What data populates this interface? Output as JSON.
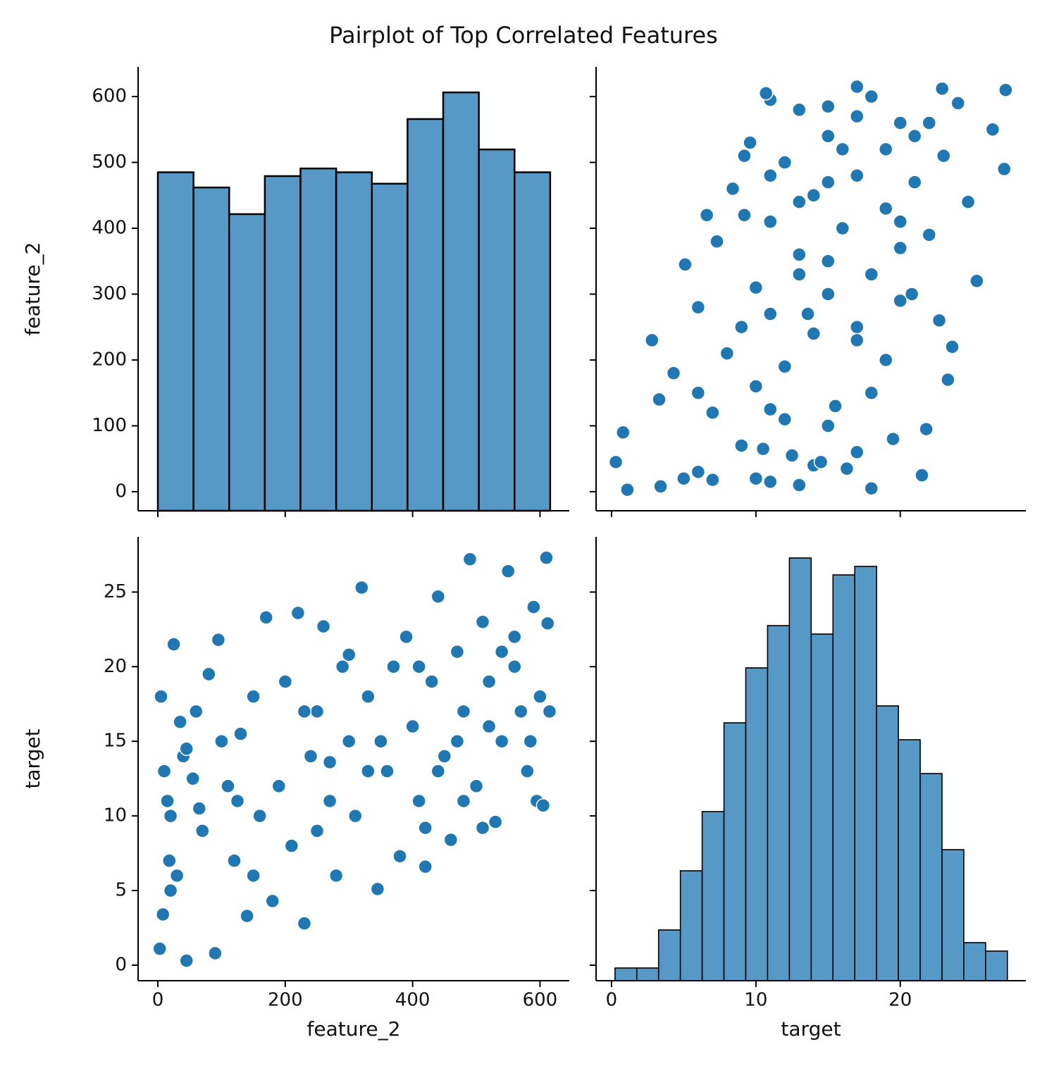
{
  "title": "Pairplot of Top Correlated Features",
  "chart_data": [
    {
      "type": "histogram",
      "ylabel": "feature_2",
      "bins": [
        0,
        56,
        112,
        168,
        224,
        280,
        336,
        392,
        448,
        504,
        560,
        616
      ],
      "counts": [
        89,
        85,
        78,
        88,
        90,
        89,
        86,
        103,
        110,
        95,
        89
      ],
      "color": "#5699c6",
      "edgecolor": "#000000",
      "xlim": [
        -31,
        646
      ],
      "xticks": [
        0,
        200,
        400,
        600
      ],
      "xtick_labels": false,
      "ylim": [
        -29,
        645
      ],
      "yticks": [
        0,
        100,
        200,
        300,
        400,
        500,
        600
      ],
      "ytick_labels": true,
      "y2lim": [
        0,
        116.7
      ]
    },
    {
      "type": "scatter",
      "x": [
        18,
        13,
        11,
        10,
        21.5,
        6,
        14,
        0.3,
        17,
        9,
        0.8,
        21.8,
        15,
        12,
        7,
        3.3,
        18,
        10,
        23.3,
        4.3,
        19,
        8,
        23.6,
        2.8,
        14,
        17,
        22.7,
        11,
        6,
        20,
        15,
        10,
        25.3,
        18,
        5.1,
        13,
        7.3,
        22,
        16,
        11,
        6.6,
        19,
        24.7,
        14,
        8.4,
        21,
        17,
        27.2,
        12,
        23,
        19,
        9.6,
        15,
        26.4,
        20,
        17,
        13,
        24,
        11,
        10.7,
        27.3,
        22.9,
        1.1,
        3.4,
        7,
        16.3,
        12.5,
        19.5,
        15.5,
        12,
        9,
        13,
        20,
        13,
        11,
        16,
        22,
        18,
        17,
        5,
        10.5,
        6,
        17,
        20.8,
        15,
        20,
        15,
        21,
        15,
        9.2,
        9.2,
        13.6,
        11,
        14.5
      ],
      "y": [
        5,
        10,
        15,
        20,
        25,
        30,
        40,
        45,
        60,
        70,
        90,
        95,
        100,
        110,
        120,
        140,
        150,
        160,
        170,
        180,
        200,
        210,
        220,
        230,
        240,
        250,
        260,
        270,
        280,
        290,
        300,
        310,
        320,
        330,
        345,
        360,
        380,
        390,
        400,
        410,
        420,
        430,
        440,
        450,
        460,
        470,
        480,
        490,
        500,
        510,
        520,
        530,
        540,
        550,
        560,
        570,
        580,
        590,
        595,
        605,
        610,
        612,
        3,
        8,
        18,
        35,
        55,
        80,
        130,
        190,
        250,
        330,
        370,
        440,
        480,
        520,
        560,
        600,
        615,
        20,
        65,
        150,
        230,
        300,
        350,
        410,
        470,
        540,
        585,
        420,
        510,
        270,
        125,
        45
      ],
      "color": "#1f77b4",
      "xlim": [
        -1.07,
        28.7
      ],
      "xticks": [
        0,
        10,
        20
      ],
      "xtick_labels": false,
      "ylim": [
        -29,
        645
      ],
      "yticks": [
        0,
        100,
        200,
        300,
        400,
        500,
        600
      ],
      "ytick_labels": false
    },
    {
      "type": "scatter",
      "xlabel": "feature_2",
      "ylabel": "target",
      "x": [
        5,
        10,
        15,
        20,
        25,
        30,
        40,
        45,
        60,
        70,
        90,
        95,
        100,
        110,
        120,
        140,
        150,
        160,
        170,
        180,
        200,
        210,
        220,
        230,
        240,
        250,
        260,
        270,
        280,
        290,
        300,
        310,
        320,
        330,
        345,
        360,
        380,
        390,
        400,
        410,
        420,
        430,
        440,
        450,
        460,
        470,
        480,
        490,
        500,
        510,
        520,
        530,
        540,
        550,
        560,
        570,
        580,
        590,
        595,
        605,
        610,
        612,
        3,
        8,
        18,
        35,
        55,
        80,
        130,
        190,
        250,
        330,
        370,
        440,
        480,
        520,
        560,
        600,
        615,
        20,
        65,
        150,
        230,
        300,
        350,
        410,
        470,
        540,
        585,
        420,
        510,
        270,
        125,
        45
      ],
      "y": [
        18,
        13,
        11,
        10,
        21.5,
        6,
        14,
        0.3,
        17,
        9,
        0.8,
        21.8,
        15,
        12,
        7,
        3.3,
        18,
        10,
        23.3,
        4.3,
        19,
        8,
        23.6,
        2.8,
        14,
        17,
        22.7,
        11,
        6,
        20,
        15,
        10,
        25.3,
        18,
        5.1,
        13,
        7.3,
        22,
        16,
        11,
        6.6,
        19,
        24.7,
        14,
        8.4,
        21,
        17,
        27.2,
        12,
        23,
        19,
        9.6,
        15,
        26.4,
        20,
        17,
        13,
        24,
        11,
        10.7,
        27.3,
        22.9,
        1.1,
        3.4,
        7,
        16.3,
        12.5,
        19.5,
        15.5,
        12,
        9,
        13,
        20,
        13,
        11,
        16,
        22,
        18,
        17,
        5,
        10.5,
        6,
        17,
        20.8,
        15,
        20,
        15,
        21,
        15,
        9.2,
        9.2,
        13.6,
        11,
        14.5
      ],
      "color": "#1f77b4",
      "xlim": [
        -31,
        646
      ],
      "xticks": [
        0,
        200,
        400,
        600
      ],
      "xtick_labels": true,
      "ylim": [
        -1.04,
        28.7
      ],
      "yticks": [
        0,
        5,
        10,
        15,
        20,
        25
      ],
      "ytick_labels": true
    },
    {
      "type": "histogram",
      "xlabel": "target",
      "bins": [
        0.24,
        1.75,
        3.26,
        4.77,
        6.28,
        7.79,
        9.3,
        10.81,
        12.32,
        13.83,
        15.34,
        16.85,
        18.36,
        19.87,
        21.38,
        22.89,
        24.4,
        25.91,
        27.42
      ],
      "counts": [
        3,
        3,
        12,
        26,
        40,
        61,
        74,
        84,
        100,
        82,
        96,
        98,
        65,
        57,
        49,
        31,
        9,
        7
      ],
      "color": "#5699c6",
      "edgecolor": "#000000",
      "xlim": [
        -1.07,
        28.7
      ],
      "xticks": [
        0,
        10,
        20
      ],
      "xtick_labels": true,
      "ylim": [
        -1.04,
        28.7
      ],
      "yticks": [
        0,
        5,
        10,
        15,
        20,
        25
      ],
      "ytick_labels": false,
      "y2lim": [
        0,
        105
      ]
    }
  ]
}
